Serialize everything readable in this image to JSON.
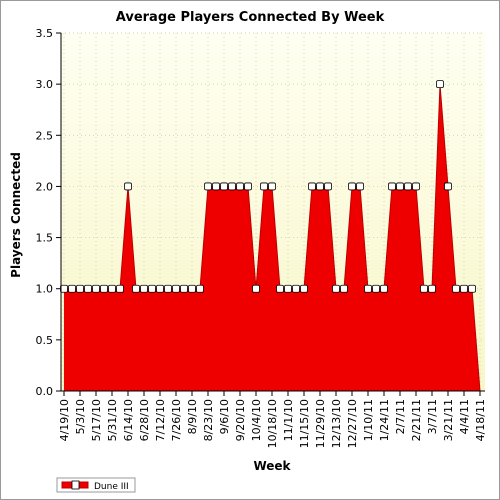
{
  "colors": {
    "plot_background_top": "#fffff2",
    "plot_background_bottom": "#f8f6c8",
    "area_fill": "#ee0000",
    "area_stroke": "#bb0000",
    "marker_fill": "#ffffff",
    "grid": "#c8c8a0"
  },
  "chart_data": {
    "type": "area",
    "title": "Average Players Connected By Week",
    "xlabel": "Week",
    "ylabel": "Players Connected",
    "ylim": [
      0,
      3.5
    ],
    "yticks": [
      "0.0",
      "0.5",
      "1.0",
      "1.5",
      "2.0",
      "2.5",
      "3.0",
      "3.5"
    ],
    "grid": true,
    "legend_position": "bottom-left",
    "x_tick_labels": [
      "4/19/10",
      "5/3/10",
      "5/17/10",
      "5/31/10",
      "6/14/10",
      "6/28/10",
      "7/12/10",
      "7/26/10",
      "8/9/10",
      "8/23/10",
      "9/6/10",
      "9/20/10",
      "10/4/10",
      "10/18/10",
      "11/1/10",
      "11/15/10",
      "11/29/10",
      "12/13/10",
      "12/27/10",
      "1/10/11",
      "1/24/11",
      "2/7/11",
      "2/21/11",
      "3/7/11",
      "3/21/11",
      "4/4/11",
      "4/18/11"
    ],
    "series": [
      {
        "name": "Dune III",
        "x": [
          "4/19/10",
          "4/26/10",
          "5/3/10",
          "5/10/10",
          "5/17/10",
          "5/24/10",
          "5/31/10",
          "6/7/10",
          "6/14/10",
          "6/21/10",
          "6/28/10",
          "7/5/10",
          "7/12/10",
          "7/19/10",
          "7/26/10",
          "8/2/10",
          "8/9/10",
          "8/16/10",
          "8/23/10",
          "8/30/10",
          "9/6/10",
          "9/13/10",
          "9/20/10",
          "9/27/10",
          "10/4/10",
          "10/11/10",
          "10/18/10",
          "10/25/10",
          "11/1/10",
          "11/8/10",
          "11/15/10",
          "11/22/10",
          "11/29/10",
          "12/6/10",
          "12/13/10",
          "12/20/10",
          "12/27/10",
          "1/3/11",
          "1/10/11",
          "1/17/11",
          "1/24/11",
          "1/31/11",
          "2/7/11",
          "2/14/11",
          "2/21/11",
          "2/28/11",
          "3/7/11",
          "3/14/11",
          "3/21/11",
          "3/28/11",
          "4/4/11",
          "4/11/11",
          "4/18/11"
        ],
        "values": [
          1,
          1,
          1,
          1,
          1,
          1,
          1,
          1,
          2,
          1,
          1,
          1,
          1,
          1,
          1,
          1,
          1,
          1,
          2,
          2,
          2,
          2,
          2,
          2,
          1,
          2,
          2,
          1,
          1,
          1,
          1,
          2,
          2,
          2,
          1,
          1,
          2,
          2,
          1,
          1,
          1,
          2,
          2,
          2,
          2,
          1,
          1,
          3,
          2,
          1,
          1,
          1,
          0
        ],
        "markers": [
          true,
          true,
          true,
          true,
          true,
          true,
          true,
          true,
          true,
          true,
          true,
          true,
          true,
          true,
          true,
          true,
          true,
          true,
          true,
          true,
          true,
          true,
          true,
          true,
          true,
          true,
          true,
          true,
          true,
          true,
          true,
          true,
          true,
          true,
          true,
          true,
          true,
          true,
          true,
          true,
          true,
          true,
          true,
          true,
          true,
          true,
          true,
          true,
          true,
          true,
          true,
          true,
          false
        ]
      }
    ]
  }
}
